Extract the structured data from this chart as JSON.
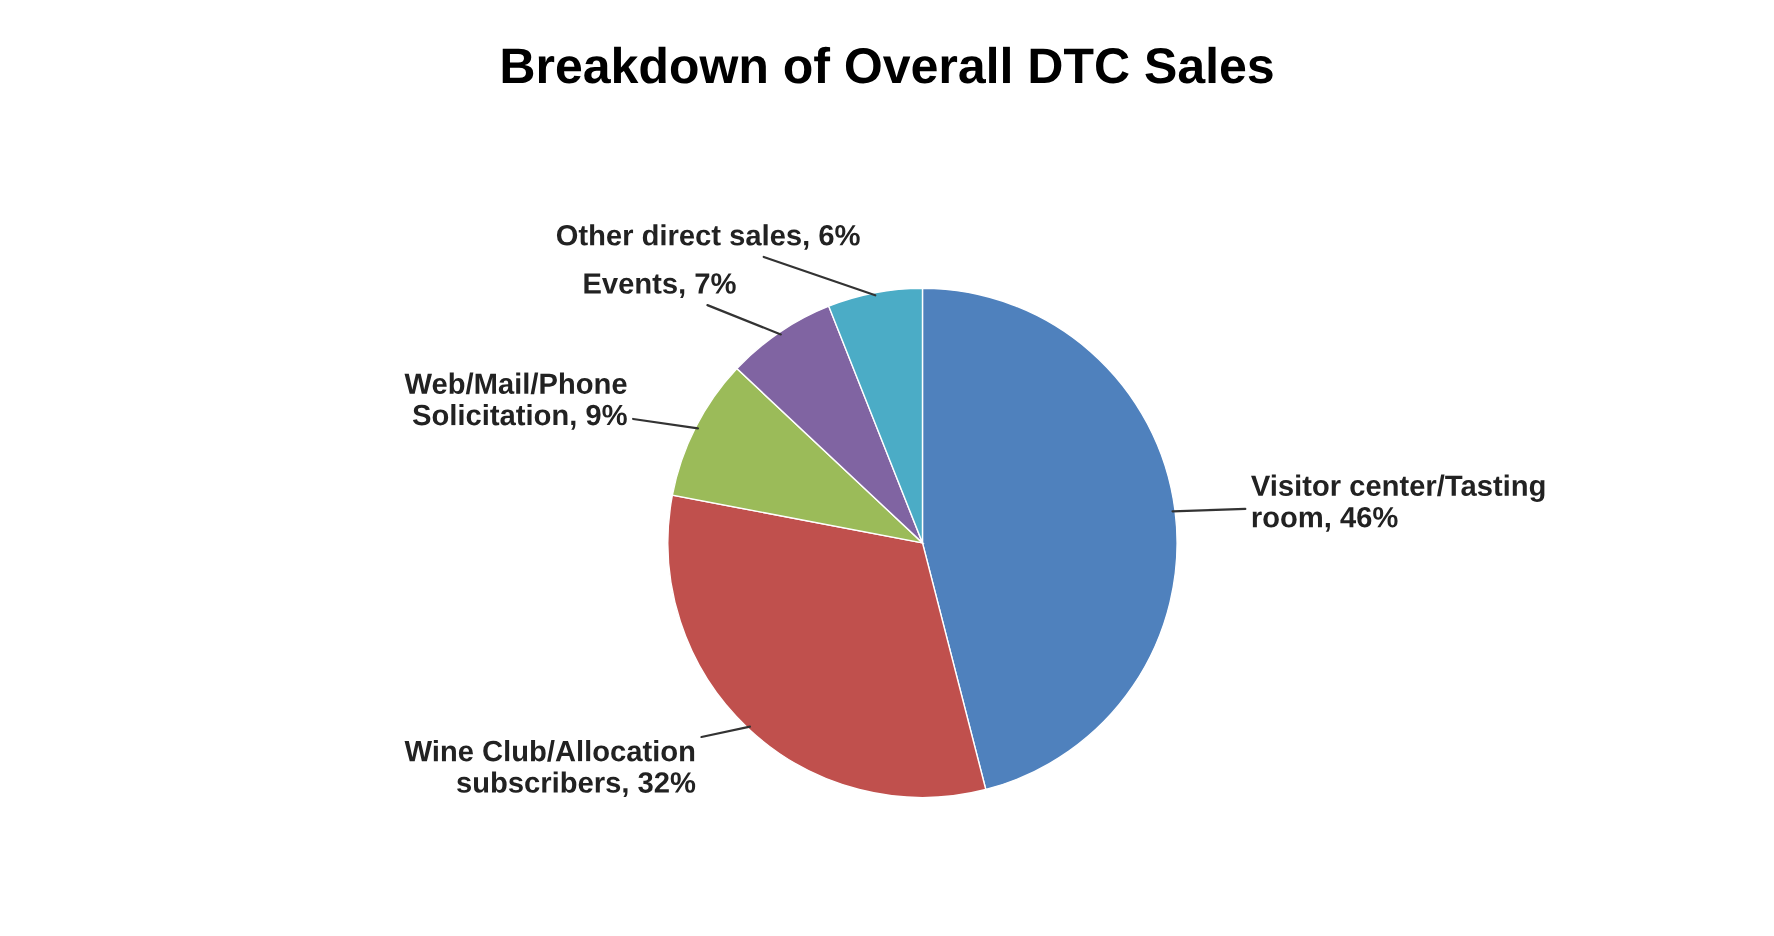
{
  "chart_data": {
    "type": "pie",
    "title": "Breakdown of Overall DTC Sales",
    "categories": [
      "Visitor center/Tasting\nroom",
      "Wine Club/Allocation\nsubscribers",
      "Web/Mail/Phone\nSolicitation",
      "Events",
      "Other direct sales"
    ],
    "values": [
      46,
      32,
      9,
      7,
      6
    ],
    "value_labels": [
      "46%",
      "32%",
      "9%",
      "7%",
      "6%"
    ],
    "colors": [
      "#4f81bd",
      "#c0504d",
      "#9bbb59",
      "#8064a2",
      "#4bacc6"
    ],
    "legend": false
  }
}
